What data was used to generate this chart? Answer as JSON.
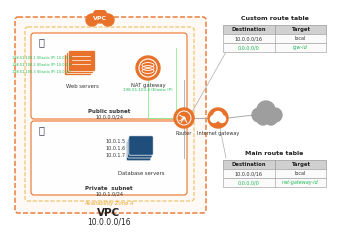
{
  "bg_color": "#ffffff",
  "vpc_label": "VPC",
  "vpc_cidr": "10.0.0.0/16",
  "az_label": "Availability Zone A",
  "public_subnet_label": "Public subnet",
  "public_subnet_cidr": "10.0.0.0/24",
  "private_subnet_label": "Private  subnet",
  "private_subnet_cidr": "10.0.1.0/24",
  "web_servers_label": "Web servers",
  "web_ips": [
    "198.51.100.1 (Elastic IP) 10.0.0.5",
    "198.51.100.2 (Elastic IP) 10.0.0.6",
    "198.51.100.3 (Elastic IP) 10.0.0.7"
  ],
  "nat_label": "NAT gateway",
  "nat_ip": "198.51.100.4 (Elastic IP)",
  "db_servers_label": "Database servers",
  "db_ips": [
    "10.0.1.5",
    "10.0.1.6",
    "10.0.1.7"
  ],
  "router_label": "Router",
  "igw_label": "Internet gateway",
  "custom_table_title": "Custom route table",
  "custom_table_headers": [
    "Destination",
    "Target"
  ],
  "custom_table_rows": [
    [
      "10.0.0.0/16",
      "local"
    ],
    [
      "0.0.0.0/0",
      "igw-id"
    ]
  ],
  "main_table_title": "Main route table",
  "main_table_headers": [
    "Destination",
    "Target"
  ],
  "main_table_rows": [
    [
      "10.0.0.0/16",
      "local"
    ],
    [
      "0.0.0.0/0",
      "nat-gateway-id"
    ]
  ],
  "orange": "#E8722A",
  "blue_dark": "#1F4E7A",
  "green_text": "#1DB954",
  "gray_cloud": "#9E9E9E",
  "table_header_bg": "#D0D0D0",
  "table_row_bg": "#FAFAFA",
  "line_color": "#AAAAAA",
  "green_line": "#90EE90",
  "lock_color": "#333355"
}
